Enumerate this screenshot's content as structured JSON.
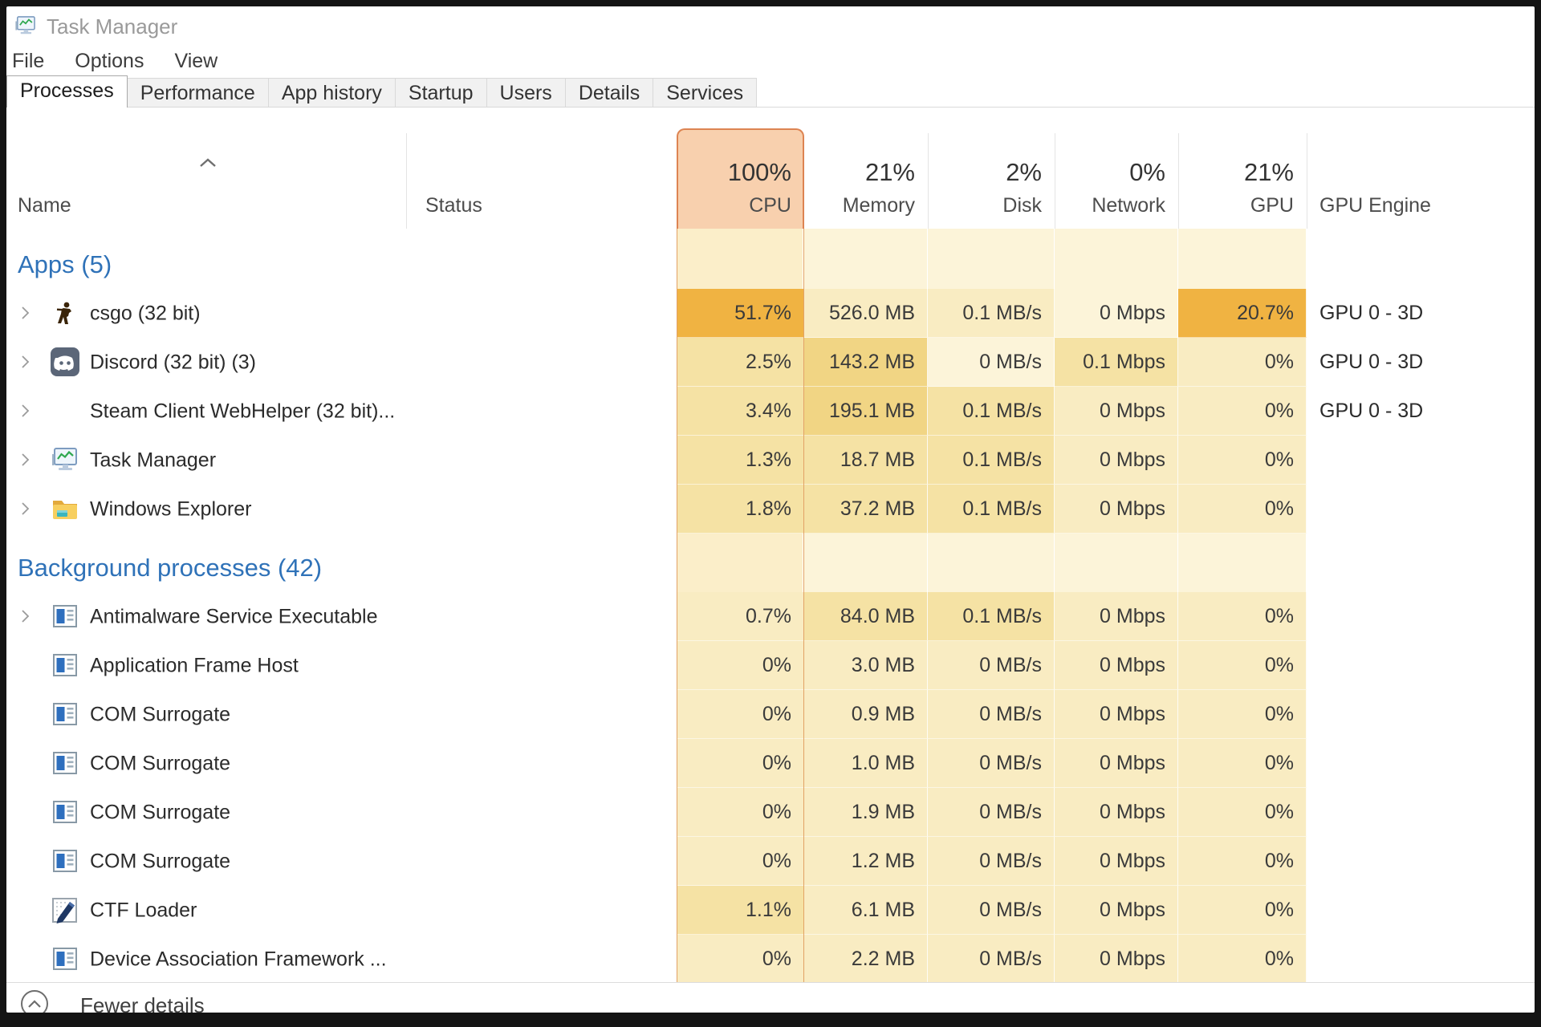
{
  "window": {
    "title": "Task Manager"
  },
  "menu": {
    "items": [
      "File",
      "Options",
      "View"
    ]
  },
  "tabs": {
    "active": "Processes",
    "items": [
      "Processes",
      "Performance",
      "App history",
      "Startup",
      "Users",
      "Details",
      "Services"
    ]
  },
  "table": {
    "sort_column": "Name",
    "sort_direction": "ascending",
    "columns": [
      {
        "key": "name",
        "label": "Name",
        "header_value": ""
      },
      {
        "key": "status",
        "label": "Status",
        "header_value": ""
      },
      {
        "key": "cpu",
        "label": "CPU",
        "header_value": "100%",
        "highlighted": true
      },
      {
        "key": "memory",
        "label": "Memory",
        "header_value": "21%"
      },
      {
        "key": "disk",
        "label": "Disk",
        "header_value": "2%"
      },
      {
        "key": "network",
        "label": "Network",
        "header_value": "0%"
      },
      {
        "key": "gpu",
        "label": "GPU",
        "header_value": "21%"
      },
      {
        "key": "gpu_engine",
        "label": "GPU Engine",
        "header_value": ""
      }
    ],
    "groups": [
      {
        "label": "Apps (5)",
        "rows": [
          {
            "name": "csgo (32 bit)",
            "icon": "csgo",
            "expandable": true,
            "status": "",
            "cpu": "51.7%",
            "memory": "526.0 MB",
            "disk": "0.1 MB/s",
            "network": "0 Mbps",
            "gpu": "20.7%",
            "gpu_engine": "GPU 0 - 3D",
            "heat": {
              "cpu": 4,
              "memory": 1,
              "disk": 1,
              "network": 0,
              "gpu": 4
            }
          },
          {
            "name": "Discord (32 bit) (3)",
            "icon": "discord",
            "expandable": true,
            "status": "",
            "cpu": "2.5%",
            "memory": "143.2 MB",
            "disk": "0 MB/s",
            "network": "0.1 Mbps",
            "gpu": "0%",
            "gpu_engine": "GPU 0 - 3D",
            "heat": {
              "cpu": 2,
              "memory": 3,
              "disk": 0,
              "network": 2,
              "gpu": 1
            }
          },
          {
            "name": "Steam Client WebHelper (32 bit)...",
            "icon": "steam",
            "expandable": true,
            "status": "",
            "cpu": "3.4%",
            "memory": "195.1 MB",
            "disk": "0.1 MB/s",
            "network": "0 Mbps",
            "gpu": "0%",
            "gpu_engine": "GPU 0 - 3D",
            "heat": {
              "cpu": 2,
              "memory": 3,
              "disk": 2,
              "network": 1,
              "gpu": 1
            }
          },
          {
            "name": "Task Manager",
            "icon": "taskmgr",
            "expandable": true,
            "status": "",
            "cpu": "1.3%",
            "memory": "18.7 MB",
            "disk": "0.1 MB/s",
            "network": "0 Mbps",
            "gpu": "0%",
            "gpu_engine": "",
            "heat": {
              "cpu": 2,
              "memory": 2,
              "disk": 2,
              "network": 1,
              "gpu": 1
            }
          },
          {
            "name": "Windows Explorer",
            "icon": "folder",
            "expandable": true,
            "status": "",
            "cpu": "1.8%",
            "memory": "37.2 MB",
            "disk": "0.1 MB/s",
            "network": "0 Mbps",
            "gpu": "0%",
            "gpu_engine": "",
            "heat": {
              "cpu": 2,
              "memory": 2,
              "disk": 2,
              "network": 1,
              "gpu": 1
            }
          }
        ]
      },
      {
        "label": "Background processes (42)",
        "rows": [
          {
            "name": "Antimalware Service Executable",
            "icon": "window",
            "expandable": true,
            "status": "",
            "cpu": "0.7%",
            "memory": "84.0 MB",
            "disk": "0.1 MB/s",
            "network": "0 Mbps",
            "gpu": "0%",
            "gpu_engine": "",
            "heat": {
              "cpu": 1,
              "memory": 2,
              "disk": 2,
              "network": 1,
              "gpu": 1
            }
          },
          {
            "name": "Application Frame Host",
            "icon": "window",
            "expandable": false,
            "status": "",
            "cpu": "0%",
            "memory": "3.0 MB",
            "disk": "0 MB/s",
            "network": "0 Mbps",
            "gpu": "0%",
            "gpu_engine": "",
            "heat": {
              "cpu": 1,
              "memory": 1,
              "disk": 1,
              "network": 1,
              "gpu": 1
            }
          },
          {
            "name": "COM Surrogate",
            "icon": "window",
            "expandable": false,
            "status": "",
            "cpu": "0%",
            "memory": "0.9 MB",
            "disk": "0 MB/s",
            "network": "0 Mbps",
            "gpu": "0%",
            "gpu_engine": "",
            "heat": {
              "cpu": 1,
              "memory": 1,
              "disk": 1,
              "network": 1,
              "gpu": 1
            }
          },
          {
            "name": "COM Surrogate",
            "icon": "window",
            "expandable": false,
            "status": "",
            "cpu": "0%",
            "memory": "1.0 MB",
            "disk": "0 MB/s",
            "network": "0 Mbps",
            "gpu": "0%",
            "gpu_engine": "",
            "heat": {
              "cpu": 1,
              "memory": 1,
              "disk": 1,
              "network": 1,
              "gpu": 1
            }
          },
          {
            "name": "COM Surrogate",
            "icon": "window",
            "expandable": false,
            "status": "",
            "cpu": "0%",
            "memory": "1.9 MB",
            "disk": "0 MB/s",
            "network": "0 Mbps",
            "gpu": "0%",
            "gpu_engine": "",
            "heat": {
              "cpu": 1,
              "memory": 1,
              "disk": 1,
              "network": 1,
              "gpu": 1
            }
          },
          {
            "name": "COM Surrogate",
            "icon": "window",
            "expandable": false,
            "status": "",
            "cpu": "0%",
            "memory": "1.2 MB",
            "disk": "0 MB/s",
            "network": "0 Mbps",
            "gpu": "0%",
            "gpu_engine": "",
            "heat": {
              "cpu": 1,
              "memory": 1,
              "disk": 1,
              "network": 1,
              "gpu": 1
            }
          },
          {
            "name": "CTF Loader",
            "icon": "ctf",
            "expandable": false,
            "status": "",
            "cpu": "1.1%",
            "memory": "6.1 MB",
            "disk": "0 MB/s",
            "network": "0 Mbps",
            "gpu": "0%",
            "gpu_engine": "",
            "heat": {
              "cpu": 2,
              "memory": 1,
              "disk": 1,
              "network": 1,
              "gpu": 1
            }
          },
          {
            "name": "Device Association Framework ...",
            "icon": "window",
            "expandable": false,
            "status": "",
            "cpu": "0%",
            "memory": "2.2 MB",
            "disk": "0 MB/s",
            "network": "0 Mbps",
            "gpu": "0%",
            "gpu_engine": "",
            "heat": {
              "cpu": 1,
              "memory": 1,
              "disk": 1,
              "network": 1,
              "gpu": 1
            }
          }
        ]
      }
    ]
  },
  "footer": {
    "label": "Fewer details"
  },
  "colors": {
    "heat0": "#fcf4d9",
    "heat1": "#f9ecc2",
    "heat2": "#f5e2a4",
    "heat3": "#f1d584",
    "heat4": "#f0b342",
    "cpu_heat0": "#fbeec9",
    "cpu_line": "#e2a265",
    "cpu_box_fill": "#f8d0ae",
    "cpu_box_border": "#dd8452",
    "group_blue": "#2f72b8"
  }
}
